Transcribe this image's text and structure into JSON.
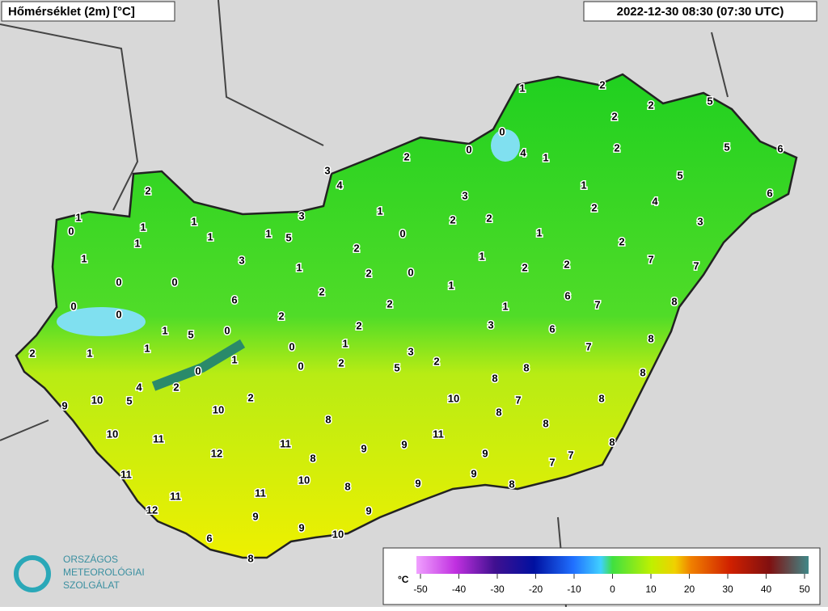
{
  "header": {
    "title": "Hőmérséklet (2m) [°C]",
    "timestamp": "2022-12-30 08:30 (07:30 UTC)"
  },
  "stations": {
    "values": [
      2,
      1,
      0,
      1,
      1,
      1,
      1,
      1,
      1,
      5,
      3,
      3,
      4,
      3,
      0,
      0,
      1,
      2,
      6,
      0,
      0,
      2,
      1,
      5,
      0,
      1,
      1,
      2,
      1,
      0,
      0,
      0,
      2,
      4,
      2,
      2,
      2,
      1,
      2,
      2,
      2,
      0,
      0,
      1,
      2,
      0,
      0,
      4,
      1,
      1,
      2,
      2,
      2,
      5,
      2,
      5,
      6,
      1,
      2,
      3,
      2,
      2,
      5,
      4,
      3,
      6,
      1,
      2,
      1,
      2,
      2,
      1,
      1,
      3,
      6,
      7,
      7,
      7,
      8,
      6,
      7,
      8,
      3,
      2,
      5,
      8,
      8,
      8,
      9,
      10,
      5,
      10,
      8,
      10,
      7,
      8,
      8,
      8,
      10,
      11,
      12,
      11,
      9,
      9,
      11,
      8,
      9,
      8,
      7,
      7,
      11,
      10,
      9,
      8,
      9,
      8,
      11,
      11,
      12,
      9,
      9,
      9,
      10,
      6,
      8
    ]
  },
  "legend": {
    "unit": "°C",
    "ticks": [
      -50,
      -40,
      -30,
      -20,
      -10,
      0,
      10,
      20,
      30,
      40,
      50
    ]
  },
  "logo": {
    "lines": [
      "ORSZÁGOS",
      "METEOROLÓGIAI",
      "SZOLGÁLAT"
    ]
  }
}
